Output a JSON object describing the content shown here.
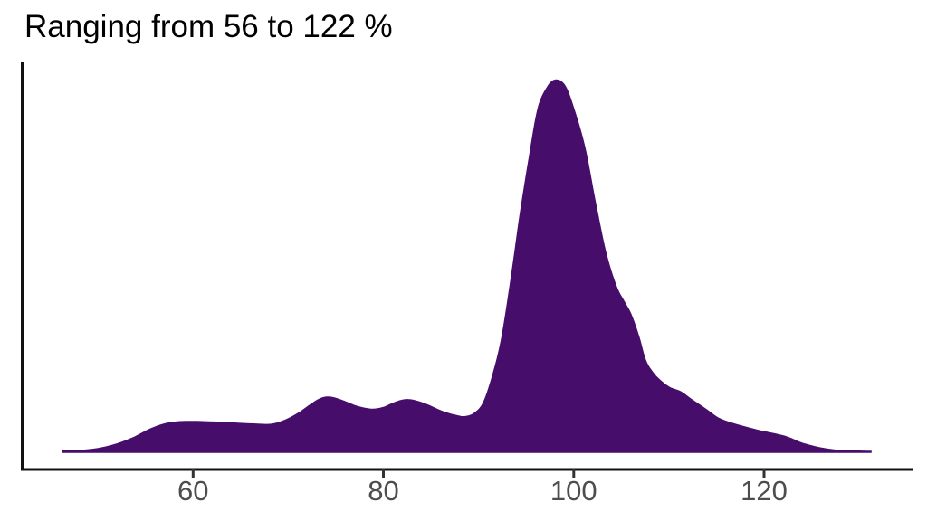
{
  "title": "Ranging from 56 to 122 %",
  "chart_data": {
    "type": "area",
    "subtype": "density",
    "title": "Ranging from 56 to 122 %",
    "xlabel": "",
    "ylabel": "",
    "x_unit": "%",
    "implied_data_min": 56,
    "implied_data_max": 122,
    "peak_x": 98,
    "grid": false,
    "legend": false,
    "x_ticks": [
      60,
      80,
      100,
      120
    ],
    "x_tick_labels": [
      "60",
      "80",
      "100",
      "120"
    ],
    "xlim": [
      41.9,
      135.6
    ],
    "ylim": [
      -0.044,
      1.048
    ],
    "fill_color": "#470D6B",
    "axis_color": "#111111",
    "tick_color": "#333333",
    "tick_label_color": "#4d4d4d",
    "title_color": "#000000",
    "curve": [
      [
        46.2,
        0.007
      ],
      [
        47.8,
        0.008
      ],
      [
        49.3,
        0.011
      ],
      [
        50.7,
        0.017
      ],
      [
        52.1,
        0.027
      ],
      [
        53.8,
        0.044
      ],
      [
        55.4,
        0.065
      ],
      [
        56.9,
        0.079
      ],
      [
        58.3,
        0.085
      ],
      [
        60.2,
        0.086
      ],
      [
        62.6,
        0.084
      ],
      [
        64.9,
        0.081
      ],
      [
        66.8,
        0.079
      ],
      [
        68.3,
        0.079
      ],
      [
        69.7,
        0.09
      ],
      [
        71.1,
        0.109
      ],
      [
        72.6,
        0.136
      ],
      [
        73.7,
        0.15
      ],
      [
        74.7,
        0.15
      ],
      [
        75.9,
        0.14
      ],
      [
        77.3,
        0.126
      ],
      [
        78.7,
        0.119
      ],
      [
        79.9,
        0.123
      ],
      [
        81.1,
        0.136
      ],
      [
        82.2,
        0.144
      ],
      [
        83.3,
        0.142
      ],
      [
        84.6,
        0.131
      ],
      [
        86.1,
        0.114
      ],
      [
        87.5,
        0.103
      ],
      [
        88.6,
        0.099
      ],
      [
        89.6,
        0.109
      ],
      [
        90.5,
        0.138
      ],
      [
        91.5,
        0.215
      ],
      [
        92.4,
        0.312
      ],
      [
        93.4,
        0.475
      ],
      [
        94.3,
        0.637
      ],
      [
        95.3,
        0.797
      ],
      [
        96.2,
        0.923
      ],
      [
        97.2,
        0.981
      ],
      [
        98.1,
        1.0
      ],
      [
        99.1,
        0.985
      ],
      [
        100.0,
        0.927
      ],
      [
        101.2,
        0.821
      ],
      [
        102.3,
        0.676
      ],
      [
        103.4,
        0.54
      ],
      [
        104.5,
        0.448
      ],
      [
        105.4,
        0.404
      ],
      [
        106.1,
        0.37
      ],
      [
        106.9,
        0.312
      ],
      [
        107.6,
        0.249
      ],
      [
        108.4,
        0.215
      ],
      [
        109.2,
        0.194
      ],
      [
        110.1,
        0.177
      ],
      [
        111.3,
        0.165
      ],
      [
        112.5,
        0.143
      ],
      [
        113.9,
        0.119
      ],
      [
        115.3,
        0.094
      ],
      [
        116.8,
        0.08
      ],
      [
        118.2,
        0.07
      ],
      [
        119.6,
        0.061
      ],
      [
        121.1,
        0.053
      ],
      [
        122.5,
        0.044
      ],
      [
        123.9,
        0.029
      ],
      [
        125.3,
        0.019
      ],
      [
        126.7,
        0.012
      ],
      [
        128.2,
        0.008
      ],
      [
        129.6,
        0.007
      ],
      [
        131.3,
        0.006
      ]
    ]
  }
}
